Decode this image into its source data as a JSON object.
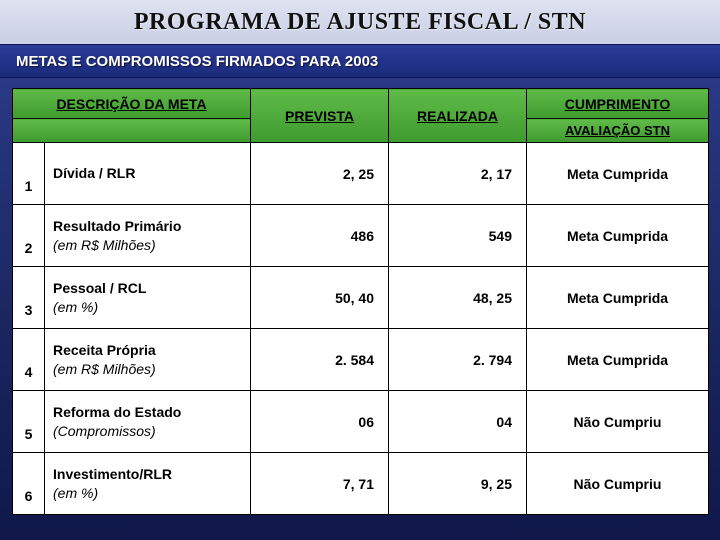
{
  "page": {
    "title": "PROGRAMA DE AJUSTE FISCAL / STN",
    "subtitle": "METAS E COMPROMISSOS FIRMADOS PARA 2003"
  },
  "table": {
    "headers": {
      "descricao": "DESCRIÇÃO DA META",
      "prevista": "PREVISTA",
      "realizada": "REALIZADA",
      "cumprimento": "CUMPRIMENTO",
      "avaliacao": "AVALIAÇÃO STN"
    },
    "rows": [
      {
        "n": "1",
        "label": "Dívida / RLR",
        "note": "",
        "prev": "2, 25",
        "real": "2, 17",
        "status": "Meta Cumprida"
      },
      {
        "n": "2",
        "label": "Resultado Primário",
        "note": "(em R$ Milhões)",
        "prev": "486",
        "real": "549",
        "status": "Meta Cumprida"
      },
      {
        "n": "3",
        "label": "Pessoal / RCL",
        "note": "(em %)",
        "prev": "50, 40",
        "real": "48, 25",
        "status": "Meta Cumprida"
      },
      {
        "n": "4",
        "label": "Receita Própria",
        "note": "(em R$ Milhões)",
        "prev": "2. 584",
        "real": "2. 794",
        "status": "Meta Cumprida"
      },
      {
        "n": "5",
        "label": "Reforma do Estado",
        "note": "(Compromissos)",
        "prev": "06",
        "real": "04",
        "status": "Não Cumpriu"
      },
      {
        "n": "6",
        "label": "Investimento/RLR",
        "note": "(em %)",
        "prev": "7, 71",
        "real": "9, 25",
        "status": "Não Cumpriu"
      }
    ]
  },
  "style": {
    "bg_gradient_top": "#2e3f8f",
    "bg_gradient_bottom": "#10184a",
    "header_green_top": "#5fbb47",
    "header_green_bottom": "#3f9a2f",
    "border_color": "#000000",
    "title_font": "Times New Roman",
    "body_font": "Verdana",
    "title_fontsize_pt": 24,
    "subtitle_fontsize_pt": 15,
    "cell_fontsize_pt": 14
  }
}
